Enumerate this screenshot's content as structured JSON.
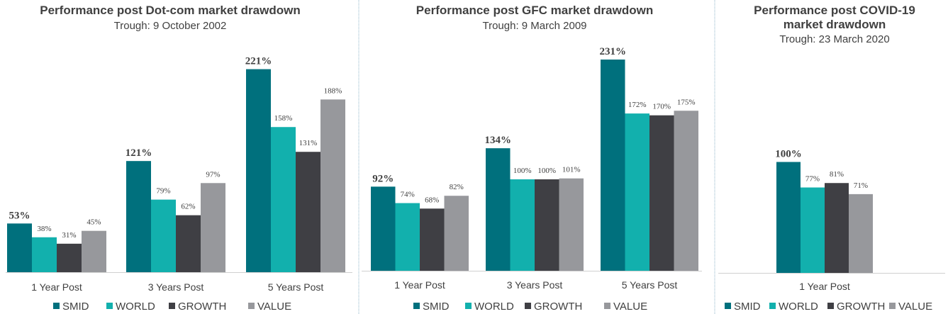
{
  "chart_data": [
    {
      "type": "bar",
      "title": "Performance post Dot-com market drawdown",
      "subtitle": "Trough: 9 October 2002",
      "categories": [
        "1 Year Post",
        "3 Years Post",
        "5 Years Post"
      ],
      "series": [
        {
          "name": "SMID",
          "values": [
            53,
            121,
            221
          ],
          "labels": [
            "53%",
            "121%",
            "221%"
          ]
        },
        {
          "name": "WORLD",
          "values": [
            38,
            79,
            158
          ],
          "labels": [
            "38%",
            "79%",
            "158%"
          ]
        },
        {
          "name": "GROWTH",
          "values": [
            31,
            62,
            131
          ],
          "labels": [
            "31%",
            "62%",
            "131%"
          ]
        },
        {
          "name": "VALUE",
          "values": [
            45,
            97,
            188
          ],
          "labels": [
            "45%",
            "97%",
            "188%"
          ]
        }
      ],
      "ylim": [
        0,
        231
      ]
    },
    {
      "type": "bar",
      "title": "Performance post GFC market drawdown",
      "subtitle": "Trough: 9 March 2009",
      "categories": [
        "1 Year Post",
        "3 Years Post",
        "5 Years Post"
      ],
      "series": [
        {
          "name": "SMID",
          "values": [
            92,
            134,
            231
          ],
          "labels": [
            "92%",
            "134%",
            "231%"
          ]
        },
        {
          "name": "WORLD",
          "values": [
            74,
            100,
            172
          ],
          "labels": [
            "74%",
            "100%",
            "172%"
          ]
        },
        {
          "name": "GROWTH",
          "values": [
            68,
            100,
            170
          ],
          "labels": [
            "68%",
            "100%",
            "170%"
          ]
        },
        {
          "name": "VALUE",
          "values": [
            82,
            101,
            175
          ],
          "labels": [
            "82%",
            "101%",
            "175%"
          ]
        }
      ],
      "ylim": [
        0,
        231
      ]
    },
    {
      "type": "bar",
      "title": "Performance post COVID-19 market drawdown",
      "subtitle": "Trough: 23 March 2020",
      "categories": [
        "1 Year Post"
      ],
      "series": [
        {
          "name": "SMID",
          "values": [
            100
          ],
          "labels": [
            "100%"
          ]
        },
        {
          "name": "WORLD",
          "values": [
            77
          ],
          "labels": [
            "77%"
          ]
        },
        {
          "name": "GROWTH",
          "values": [
            81
          ],
          "labels": [
            "81%"
          ]
        },
        {
          "name": "VALUE",
          "values": [
            71
          ],
          "labels": [
            "71%"
          ]
        }
      ],
      "ylim": [
        0,
        231
      ]
    }
  ],
  "colors": {
    "SMID": "#00707d",
    "WORLD": "#12b0ad",
    "GROWTH": "#3f3f44",
    "VALUE": "#97989c",
    "axis": "#d0d0d0",
    "divider": "#8fb4c8"
  }
}
